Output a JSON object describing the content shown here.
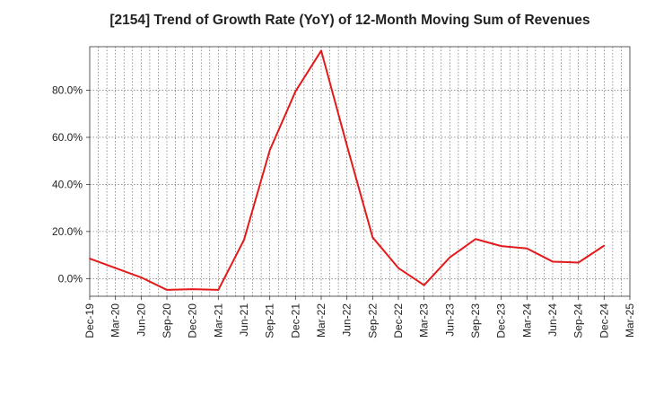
{
  "chart_data": {
    "type": "line",
    "title": "[2154]  Trend of Growth Rate (YoY) of 12-Month Moving Sum of Revenues",
    "xlabel": "",
    "ylabel": "",
    "x_ticks": [
      "Dec-19",
      "Mar-20",
      "Jun-20",
      "Sep-20",
      "Dec-20",
      "Mar-21",
      "Jun-21",
      "Sep-21",
      "Dec-21",
      "Mar-22",
      "Jun-22",
      "Sep-22",
      "Dec-22",
      "Mar-23",
      "Jun-23",
      "Sep-23",
      "Dec-23",
      "Mar-24",
      "Jun-24",
      "Sep-24",
      "Dec-24",
      "Mar-25"
    ],
    "y_ticks": [
      0,
      20,
      40,
      60,
      80
    ],
    "y_tick_labels": [
      "0.0%",
      "20.0%",
      "40.0%",
      "60.0%",
      "80.0%"
    ],
    "ylim": [
      -7.5,
      98.5
    ],
    "grid": true,
    "series": [
      {
        "color": "#e31a1c",
        "x": [
          "Dec-19",
          "Mar-20",
          "Jun-20",
          "Sep-20",
          "Dec-20",
          "Mar-21",
          "Jun-21",
          "Sep-21",
          "Dec-21",
          "Mar-22",
          "Jun-22",
          "Sep-22",
          "Dec-22",
          "Mar-23",
          "Jun-23",
          "Sep-23",
          "Dec-23",
          "Mar-24",
          "Jun-24",
          "Sep-24",
          "Dec-24"
        ],
        "values": [
          8.5,
          4.5,
          0.5,
          -4.8,
          -4.5,
          -4.8,
          16.5,
          54.5,
          79.5,
          96.8,
          56.5,
          17.5,
          4.5,
          -2.8,
          9.0,
          16.8,
          13.8,
          12.8,
          7.2,
          6.8,
          14.0
        ]
      }
    ]
  }
}
